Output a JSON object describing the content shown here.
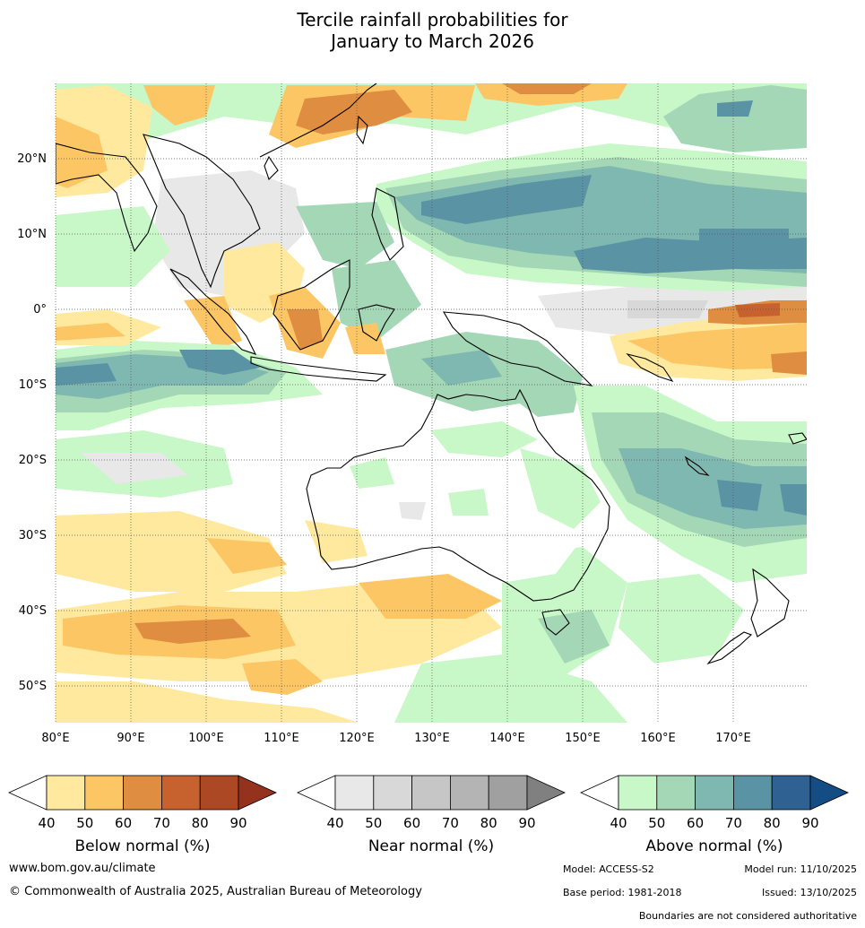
{
  "title": {
    "line1": "Tercile rainfall probabilities for",
    "line2": "January to March 2026"
  },
  "map": {
    "lat_labels": [
      "20°N",
      "10°N",
      "0°",
      "10°S",
      "20°S",
      "30°S",
      "40°S",
      "50°S"
    ],
    "lon_labels": [
      "80°E",
      "90°E",
      "100°E",
      "110°E",
      "120°E",
      "130°E",
      "140°E",
      "150°E",
      "160°E",
      "170°E"
    ]
  },
  "legends": [
    {
      "caption": "Below normal (%)",
      "ticks": [
        "40",
        "50",
        "60",
        "70",
        "80",
        "90"
      ],
      "colors": [
        "#ffffff",
        "#fee99f",
        "#fdc664",
        "#df8d40",
        "#c7622e",
        "#ad4825",
        "#94321d"
      ]
    },
    {
      "caption": "Near normal (%)",
      "ticks": [
        "40",
        "50",
        "60",
        "70",
        "80",
        "90"
      ],
      "colors": [
        "#ffffff",
        "#e8e8e8",
        "#d8d8d8",
        "#c6c6c6",
        "#b4b4b4",
        "#a0a0a0",
        "#808080"
      ]
    },
    {
      "caption": "Above normal (%)",
      "ticks": [
        "40",
        "50",
        "60",
        "70",
        "80",
        "90"
      ],
      "colors": [
        "#ffffff",
        "#c8f7c8",
        "#a3d7b6",
        "#7fb8b0",
        "#5a93a3",
        "#2f6292",
        "#144c84"
      ]
    }
  ],
  "footer": {
    "website": "www.bom.gov.au/climate",
    "copyright": "© Commonwealth of Australia 2025, Australian Bureau of Meteorology",
    "model": "Model: ACCESS-S2",
    "model_run": "Model run: 11/10/2025",
    "base_period": "Base period: 1981-2018",
    "issued": "Issued: 13/10/2025",
    "disclaimer": "Boundaries are not considered authoritative"
  }
}
